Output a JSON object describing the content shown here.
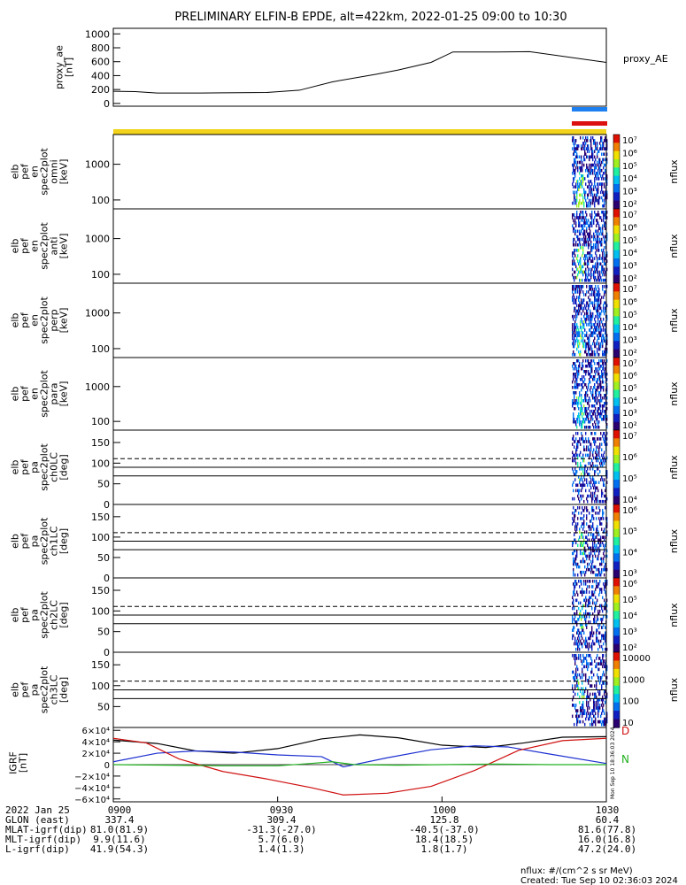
{
  "title": "PRELIMINARY ELFIN-B EPDE, alt=422km, 2022-01-25 09:00 to 10:30",
  "colors": {
    "ae_line": "#000000",
    "bar_blue": "#1e7ff0",
    "bar_red": "#dd1010",
    "bar_yellow": "#f2d21a",
    "igrf_x": "#000000",
    "igrf_y": "#1c2fd0",
    "igrf_z": "#d01010",
    "igrf_t": "#22b020",
    "dashed": "#000000"
  },
  "chart_data": [
    {
      "type": "line",
      "name": "proxy_ae",
      "ylabel_lines": [
        "proxy_ae",
        "[nT]"
      ],
      "legend": "proxy_AE",
      "yticks": [
        "1000",
        "800",
        "600",
        "400",
        "200",
        "0"
      ],
      "ylim": [
        -40,
        1080
      ],
      "x": [
        0,
        4,
        8,
        16,
        20,
        28,
        34,
        40,
        48,
        52,
        58,
        62,
        70,
        76,
        90
      ],
      "y": [
        175,
        170,
        150,
        150,
        152,
        157,
        190,
        310,
        420,
        480,
        590,
        740,
        740,
        745,
        590
      ]
    },
    {
      "type": "heatmap",
      "name": "omni",
      "ylabel_lines": [
        "elb",
        "pef",
        "en",
        "spec2plot",
        "omni",
        "[keV]"
      ],
      "yticks": [
        "1000",
        "100"
      ],
      "colorbar_label": "nflux",
      "colorbar_ticks": [
        "10⁷",
        "10⁶",
        "10⁵",
        "10⁴",
        "10³",
        "10²"
      ]
    },
    {
      "type": "heatmap",
      "name": "anti",
      "ylabel_lines": [
        "elb",
        "pef",
        "en",
        "spec2plot",
        "anti",
        "[keV]"
      ],
      "yticks": [
        "1000",
        "100"
      ],
      "colorbar_label": "nflux",
      "colorbar_ticks": [
        "10⁷",
        "10⁶",
        "10⁵",
        "10⁴",
        "10³",
        "10²"
      ]
    },
    {
      "type": "heatmap",
      "name": "perp",
      "ylabel_lines": [
        "elb",
        "pef",
        "en",
        "spec2plot",
        "perp",
        "[keV]"
      ],
      "yticks": [
        "1000",
        "100"
      ],
      "colorbar_label": "nflux",
      "colorbar_ticks": [
        "10⁷",
        "10⁶",
        "10⁵",
        "10⁴",
        "10³",
        "10²"
      ]
    },
    {
      "type": "heatmap",
      "name": "para",
      "ylabel_lines": [
        "elb",
        "pef",
        "en",
        "spec2plot",
        "para",
        "[keV]"
      ],
      "yticks": [
        "1000",
        "100"
      ],
      "colorbar_label": "nflux",
      "colorbar_ticks": [
        "10⁷",
        "10⁶",
        "10⁵",
        "10⁴",
        "10³",
        "10²"
      ]
    },
    {
      "type": "heatmap",
      "name": "ch0LC",
      "ylabel_lines": [
        "elb",
        "pef",
        "pa",
        "spec2plot",
        "ch0LC",
        "[deg]"
      ],
      "yticks": [
        "150",
        "100",
        "50",
        "0"
      ],
      "colorbar_label": "nflux",
      "colorbar_ticks": [
        "10⁷",
        "10⁶",
        "10⁵",
        "10⁴"
      ]
    },
    {
      "type": "heatmap",
      "name": "ch1LC",
      "ylabel_lines": [
        "elb",
        "pef",
        "pa",
        "spec2plot",
        "ch1LC",
        "[deg]"
      ],
      "yticks": [
        "150",
        "100",
        "50",
        "0"
      ],
      "colorbar_label": "nflux",
      "colorbar_ticks": [
        "10⁶",
        "10⁵",
        "10⁴",
        "10³"
      ]
    },
    {
      "type": "heatmap",
      "name": "ch2LC",
      "ylabel_lines": [
        "elb",
        "pef",
        "pa",
        "spec2plot",
        "ch2LC",
        "[deg]"
      ],
      "yticks": [
        "150",
        "100",
        "50",
        "0"
      ],
      "colorbar_label": "nflux",
      "colorbar_ticks": [
        "10⁶",
        "10⁵",
        "10⁴",
        "10³",
        "10²"
      ]
    },
    {
      "type": "heatmap",
      "name": "ch3LC",
      "ylabel_lines": [
        "elb",
        "pef",
        "pa",
        "spec2plot",
        "ch3LC",
        "[deg]"
      ],
      "yticks": [
        "150",
        "100",
        "50"
      ],
      "colorbar_label": "nflux",
      "colorbar_ticks": [
        "10000",
        "1000",
        "100",
        "10"
      ]
    },
    {
      "type": "line",
      "name": "IGRF",
      "ylabel_lines": [
        "IGRF",
        "[nT]"
      ],
      "yticks": [
        "6×10⁴",
        "4×10⁴",
        "2×10⁴",
        "0",
        "−2×10⁴",
        "−4×10⁴",
        "−6×10⁴"
      ],
      "ylim": [
        -65000,
        65000
      ],
      "legend": [
        "D",
        "N"
      ],
      "series": [
        {
          "x": [
            0,
            8,
            15,
            22,
            30,
            38,
            45,
            52,
            60,
            68,
            75,
            82,
            90
          ],
          "y": [
            43000,
            37000,
            24000,
            20000,
            28000,
            45000,
            52000,
            47000,
            34000,
            30000,
            38000,
            48000,
            49000
          ]
        },
        {
          "x": [
            0,
            8,
            15,
            22,
            30,
            38,
            42,
            50,
            58,
            66,
            72,
            80,
            90
          ],
          "y": [
            5000,
            20000,
            24000,
            22000,
            17000,
            14000,
            -4000,
            12000,
            26000,
            33000,
            31000,
            18000,
            2000
          ]
        },
        {
          "x": [
            0,
            6,
            12,
            20,
            28,
            36,
            42,
            50,
            58,
            66,
            74,
            82,
            90
          ],
          "y": [
            46000,
            38000,
            10000,
            -12000,
            -25000,
            -40000,
            -53000,
            -50000,
            -38000,
            -10000,
            25000,
            42000,
            46000
          ]
        },
        {
          "x": [
            0,
            10,
            20,
            30,
            36,
            40,
            44,
            52,
            60,
            70,
            80,
            90
          ],
          "y": [
            0,
            -1000,
            -2000,
            -2000,
            2000,
            5000,
            0,
            -1000,
            0,
            1000,
            0,
            0
          ]
        }
      ]
    }
  ],
  "stamp": "Mon Sep 10 18:36:03 2024",
  "footer": {
    "rows": [
      {
        "label": "2022 Jan 25",
        "values": [
          "0900",
          "0930",
          "1000",
          "1030"
        ]
      },
      {
        "label": "GLON (east)",
        "values": [
          "337.4",
          "309.4",
          "125.8",
          "60.4"
        ]
      },
      {
        "label": "MLAT-igrf(dip)",
        "values": [
          "81.0(81.9)",
          "-31.3(-27.0)",
          "-40.5(-37.0)",
          "81.6(77.8)"
        ]
      },
      {
        "label": "MLT-igrf(dip)",
        "values": [
          "9.9(11.6)",
          "5.7(6.0)",
          "18.4(18.5)",
          "16.0(16.8)"
        ]
      },
      {
        "label": "L-igrf(dip)",
        "values": [
          "41.9(54.3)",
          "1.4(1.3)",
          "1.8(1.7)",
          "47.2(24.0)"
        ]
      }
    ],
    "units_note": "nflux: #/(cm^2 s sr MeV)",
    "created": "Created: Tue Sep 10 02:36:03 2024"
  }
}
